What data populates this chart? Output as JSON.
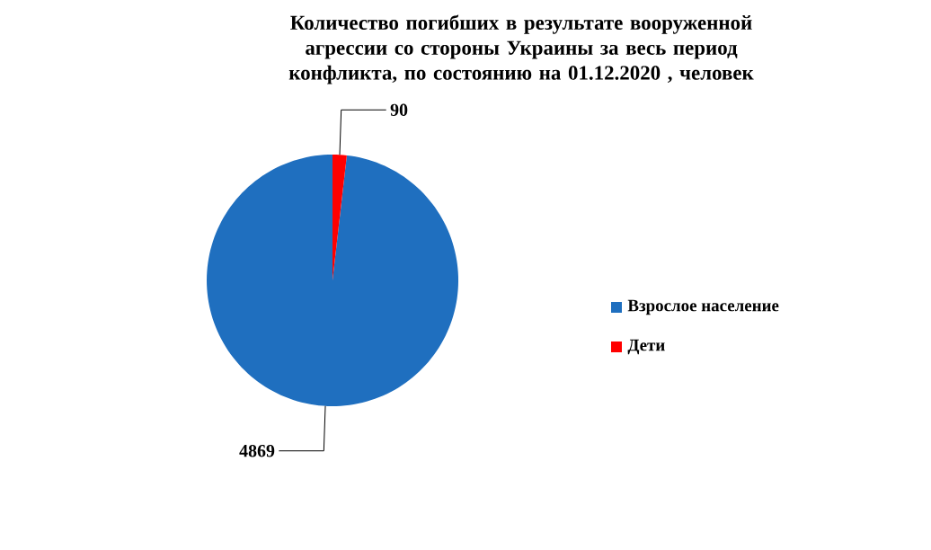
{
  "chart_data": {
    "type": "pie",
    "title": "Количество погибших в результате вооруженной агрессии со стороны Украины  за весь период конфликта, по состоянию на 01.12.2020 , человек",
    "categories": [
      "Взрослое население",
      "Дети"
    ],
    "values": [
      4869,
      90
    ],
    "colors": [
      "#1f6fbf",
      "#ff0000"
    ],
    "data_labels": true,
    "legend": "right"
  }
}
